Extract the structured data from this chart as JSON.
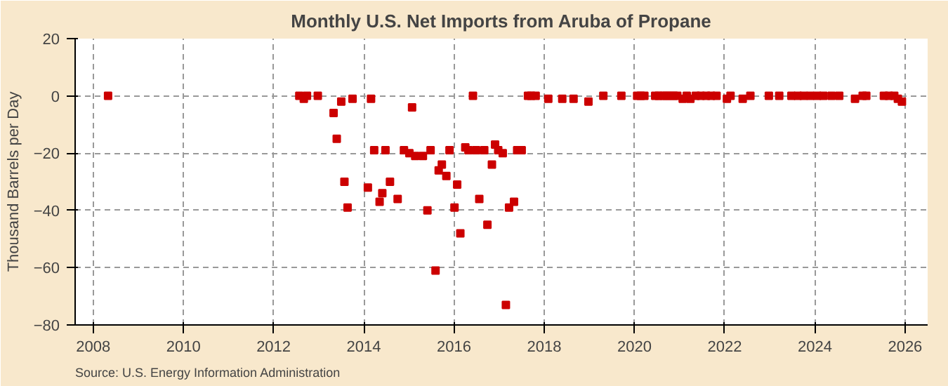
{
  "chart_data": {
    "type": "scatter",
    "title": "Monthly U.S. Net Imports from Aruba of Propane",
    "ylabel": "Thousand Barrels per Day",
    "annotations": [
      "Source: U.S. Energy Information Administration"
    ],
    "x": [
      2008.33,
      2012.57,
      2012.67,
      2012.74,
      2012.98,
      2013.33,
      2013.4,
      2013.5,
      2013.57,
      2013.64,
      2013.75,
      2014.09,
      2014.16,
      2014.23,
      2014.35,
      2014.41,
      2014.48,
      2014.58,
      2014.75,
      2014.89,
      2015.01,
      2015.07,
      2015.14,
      2015.31,
      2015.41,
      2015.48,
      2015.59,
      2015.66,
      2015.73,
      2015.83,
      2015.9,
      2016.01,
      2016.07,
      2016.14,
      2016.25,
      2016.32,
      2016.42,
      2016.49,
      2016.56,
      2016.67,
      2016.74,
      2016.84,
      2016.91,
      2016.98,
      2017.08,
      2017.15,
      2017.22,
      2017.33,
      2017.4,
      2017.5,
      2017.64,
      2017.71,
      2017.81,
      2018.09,
      2018.4,
      2018.65,
      2018.98,
      2019.31,
      2019.71,
      2020.06,
      2020.14,
      2020.22,
      2020.46,
      2020.54,
      2020.63,
      2020.71,
      2020.79,
      2020.87,
      2020.95,
      2021.07,
      2021.16,
      2021.24,
      2021.36,
      2021.47,
      2021.59,
      2021.7,
      2021.82,
      2022.05,
      2022.13,
      2022.4,
      2022.57,
      2022.98,
      2023.21,
      2023.48,
      2023.62,
      2023.75,
      2023.9,
      2024.05,
      2024.19,
      2024.37,
      2024.54,
      2024.89,
      2025.06,
      2025.14,
      2025.53,
      2025.64,
      2025.76,
      2025.84,
      2025.93
    ],
    "series": [
      {
        "color": "#cc0000",
        "values": [
          0,
          0,
          -1,
          0,
          0,
          -6,
          -15,
          -2,
          -30,
          -39,
          -1,
          -32,
          -1,
          -19,
          -37,
          -34,
          -19,
          -30,
          -36,
          -19,
          -20,
          -4,
          -21,
          -21,
          -40,
          -19,
          -61,
          -26,
          -24,
          -28,
          -19,
          -39,
          -31,
          -48,
          -18,
          -19,
          0,
          -19,
          -36,
          -19,
          -45,
          -24,
          -17,
          -19,
          -20,
          -73,
          -39,
          -37,
          -19,
          -19,
          0,
          0,
          0,
          -1,
          -1,
          -1,
          -2,
          0,
          0,
          0,
          0,
          0,
          0,
          0,
          0,
          0,
          0,
          0,
          0,
          -1,
          0,
          -1,
          0,
          0,
          0,
          0,
          0,
          -1,
          0,
          -1,
          0,
          0,
          0,
          0,
          0,
          0,
          0,
          0,
          0,
          0,
          0,
          -1,
          0,
          0,
          0,
          0,
          0,
          -1,
          -2
        ]
      }
    ],
    "xlim": [
      2007.6,
      2026.5
    ],
    "ylim": [
      -80,
      20
    ],
    "xticks": [
      2008,
      2010,
      2012,
      2014,
      2016,
      2018,
      2020,
      2022,
      2024,
      2026
    ],
    "yticks": [
      -80,
      -60,
      -40,
      -20,
      0,
      20
    ],
    "grid": true,
    "marker": "square"
  }
}
